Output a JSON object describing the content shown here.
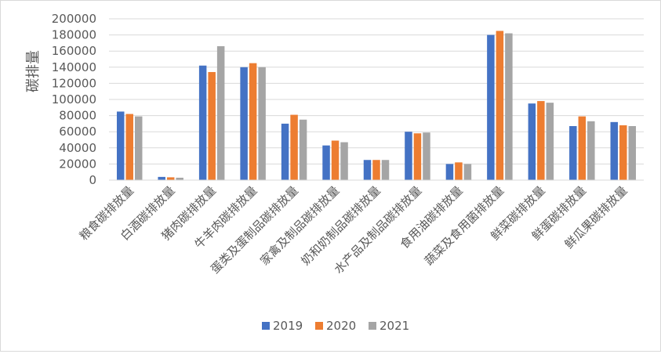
{
  "chart_data": {
    "type": "bar",
    "title": "",
    "xlabel": "",
    "ylabel": "碳排量",
    "ylim": [
      0,
      200000
    ],
    "yticks": [
      0,
      20000,
      40000,
      60000,
      80000,
      100000,
      120000,
      140000,
      160000,
      180000,
      200000
    ],
    "grid": true,
    "legend_position": "bottom",
    "categories": [
      "粮食碳排放量",
      "白酒碳排放量",
      "猪肉碳排放量",
      "牛羊肉碳排放量",
      "蛋类及蛋制品碳排放量",
      "家禽及制品碳排放量",
      "奶和奶制品碳排放量",
      "水产品及制品碳排放量",
      "食用油碳排放量",
      "蔬菜及食用菌排放量",
      "鲜菜碳排放量",
      "鲜蛋碳排放量",
      "鲜瓜果碳排放量"
    ],
    "series": [
      {
        "name": "2019",
        "color": "#4472c4",
        "values": [
          85000,
          4000,
          142000,
          140000,
          70000,
          43000,
          25000,
          60000,
          20000,
          180000,
          95000,
          67000,
          72000
        ]
      },
      {
        "name": "2020",
        "color": "#ed7d31",
        "values": [
          82000,
          3500,
          134000,
          145000,
          81000,
          49000,
          25000,
          58000,
          22000,
          185000,
          98000,
          79000,
          68000
        ]
      },
      {
        "name": "2021",
        "color": "#a5a5a5",
        "values": [
          79000,
          3000,
          166000,
          140000,
          75000,
          47000,
          25000,
          59000,
          20000,
          182000,
          96000,
          73000,
          67000
        ]
      }
    ]
  }
}
